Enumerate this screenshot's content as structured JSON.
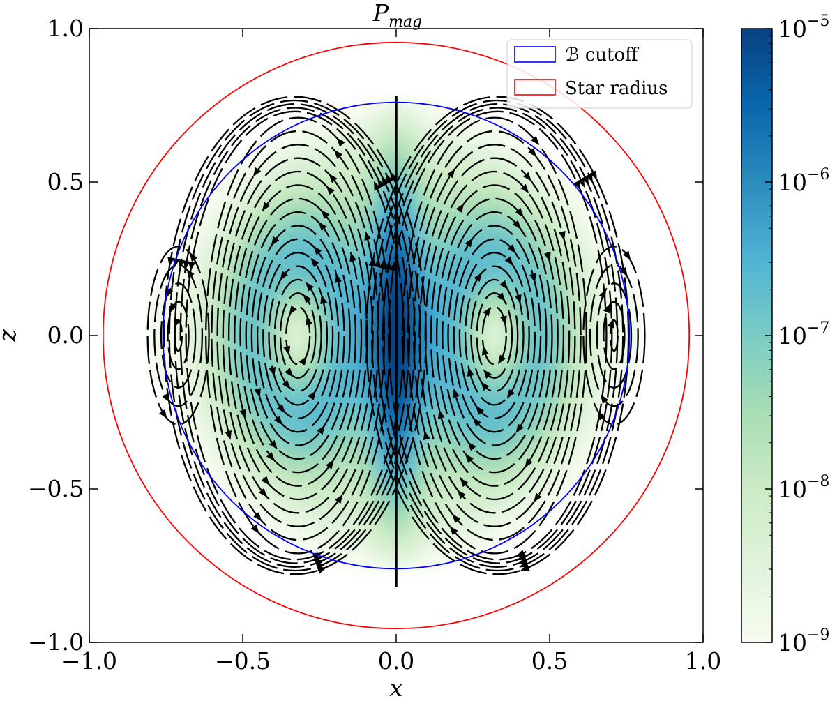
{
  "chart_data": {
    "type": "heatmap",
    "title": {
      "base": "P",
      "subscript": "mag"
    },
    "xlabel": "x",
    "ylabel": "z",
    "xlim": [
      -1.0,
      1.0
    ],
    "ylim": [
      -1.0,
      1.0
    ],
    "x_ticks": [
      "−1.0",
      "−0.5",
      "0.0",
      "0.5",
      "1.0"
    ],
    "y_ticks": [
      "1.0",
      "0.5",
      "0.0",
      "−0.5",
      "−1.0"
    ],
    "grid": false,
    "colormap": "GnBu",
    "color_scale": "log",
    "colorbar": {
      "range": [
        1e-09,
        1e-05
      ],
      "tick_values": [
        1e-05,
        1e-06,
        1e-07,
        1e-08,
        1e-09
      ],
      "tick_labels": [
        {
          "base": "10",
          "exp": "−5"
        },
        {
          "base": "10",
          "exp": "−6"
        },
        {
          "base": "10",
          "exp": "−7"
        },
        {
          "base": "10",
          "exp": "−8"
        },
        {
          "base": "10",
          "exp": "−9"
        }
      ],
      "colors": [
        "#f7fcf0",
        "#e0f3db",
        "#ccebc5",
        "#a8ddb5",
        "#7bccc4",
        "#4eb3d3",
        "#2b8cbe",
        "#0868ac",
        "#084081"
      ]
    },
    "circles": [
      {
        "name": "ℬ cutoff",
        "radius": 0.76,
        "color": "#0000ff"
      },
      {
        "name": "Star radius",
        "radius": 0.955,
        "color": "#ff0000"
      }
    ],
    "field_structure": {
      "vortex_centers": [
        {
          "x": -0.32,
          "z": 0.0
        },
        {
          "x": 0.32,
          "z": 0.0
        },
        {
          "x": -0.71,
          "z": 0.0
        },
        {
          "x": 0.71,
          "z": 0.0
        }
      ],
      "peak_value": 1e-05,
      "peak_location": "axis x = 0, |z| < 0.5"
    },
    "legend": {
      "placement": "top-right",
      "entries": [
        {
          "label": "ℬ cutoff",
          "color": "#0000ff"
        },
        {
          "label": "Star radius",
          "color": "#ff0000"
        }
      ]
    }
  }
}
